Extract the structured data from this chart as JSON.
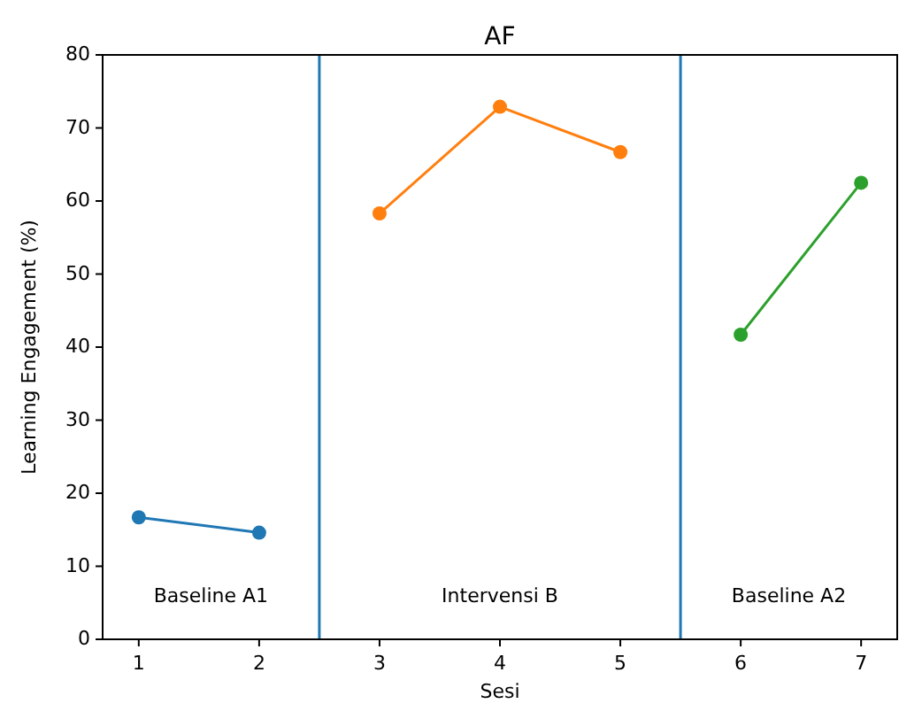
{
  "chart_data": {
    "type": "line",
    "title": "AF",
    "xlabel": "Sesi",
    "ylabel": "Learning Engagement (%)",
    "xlim": [
      0.7,
      7.3
    ],
    "xticks": [
      1,
      2,
      3,
      4,
      5,
      6,
      7
    ],
    "ylim": [
      0,
      80
    ],
    "yticks": [
      0,
      10,
      20,
      30,
      40,
      50,
      60,
      70,
      80
    ],
    "marker": "circle",
    "line_style": "solid",
    "grid": false,
    "series": [
      {
        "color": "#1f77b4",
        "x": [
          1,
          2
        ],
        "values": [
          16.7,
          14.6
        ]
      },
      {
        "color": "#ff7f0e",
        "x": [
          3,
          4,
          5
        ],
        "values": [
          58.3,
          72.9,
          66.7
        ]
      },
      {
        "color": "#2ca02c",
        "x": [
          6,
          7
        ],
        "values": [
          41.7,
          62.5
        ]
      }
    ],
    "ref_lines": [
      {
        "axis": "x",
        "value": 2.5,
        "color": "#1f77b4",
        "line_style": "solid"
      },
      {
        "axis": "x",
        "value": 5.5,
        "color": "#1f77b4",
        "line_style": "solid"
      }
    ],
    "annotations": [
      "Baseline A1",
      "Intervensi B",
      "Baseline A2"
    ]
  }
}
